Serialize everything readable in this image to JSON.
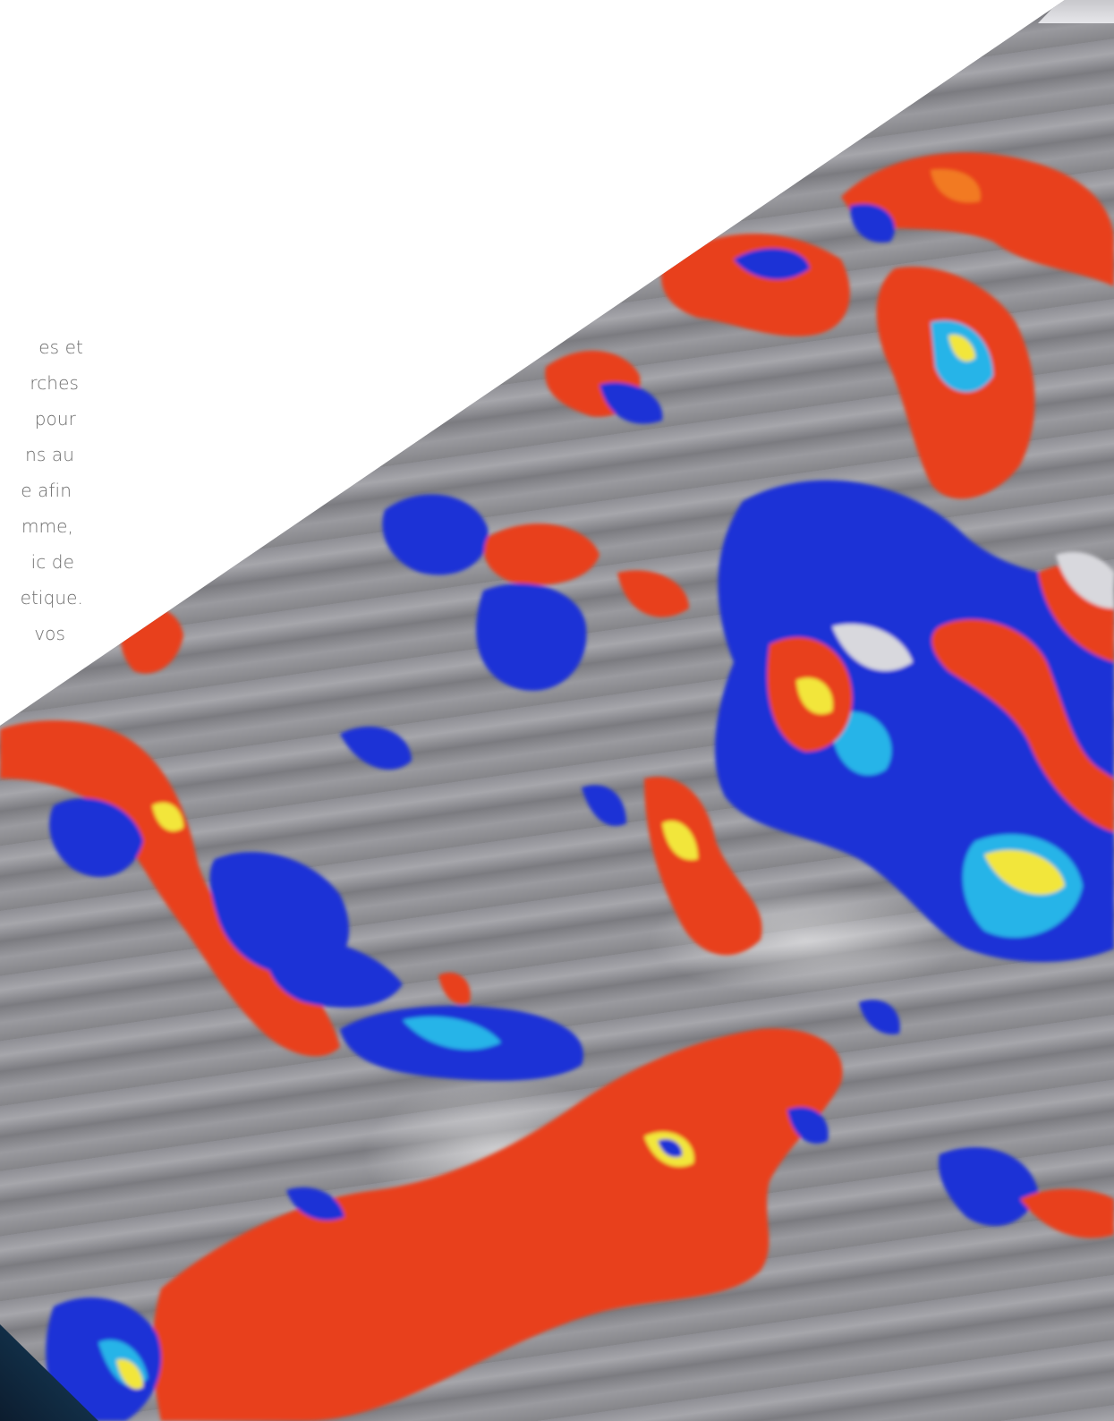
{
  "intro": {
    "lines": [
      "es et",
      "rches",
      "pour",
      "ns au",
      "e afin",
      "mme,",
      "ic de",
      "etique.",
      "vos"
    ]
  },
  "hero_image": {
    "subject": "doppler-ultrasound",
    "colors": {
      "flow_red": "#e8401f",
      "flow_orange": "#f27a22",
      "flow_blue": "#1f33d6",
      "flow_cyan": "#27b4e8",
      "flow_yellow": "#f2e63a",
      "tissue_gray": "#909095"
    }
  }
}
